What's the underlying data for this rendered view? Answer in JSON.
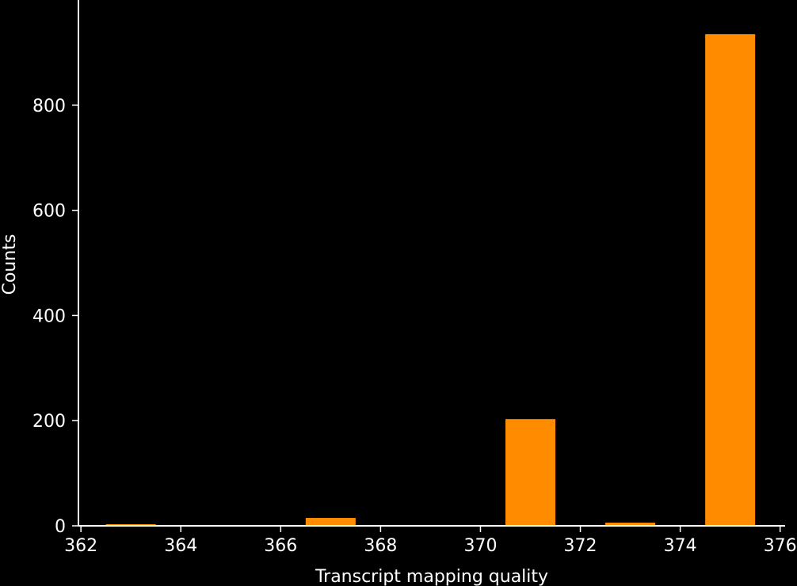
{
  "colors": {
    "background": "#000000",
    "foreground": "#ffffff",
    "bar": "#ff8c00"
  },
  "chart_data": {
    "type": "bar",
    "title": "",
    "xlabel": "Transcript mapping quality",
    "ylabel": "Counts",
    "xlim": [
      361.95,
      376.1
    ],
    "ylim": [
      0,
      1000
    ],
    "grid": false,
    "legend": "none",
    "bar_width": 1,
    "bars": [
      {
        "x": 363,
        "value": 3
      },
      {
        "x": 367,
        "value": 15
      },
      {
        "x": 371,
        "value": 203
      },
      {
        "x": 373,
        "value": 6
      },
      {
        "x": 375,
        "value": 935
      }
    ],
    "xticks": [
      362,
      364,
      366,
      368,
      370,
      372,
      374,
      376
    ],
    "yticks": [
      0,
      200,
      400,
      600,
      800
    ]
  }
}
